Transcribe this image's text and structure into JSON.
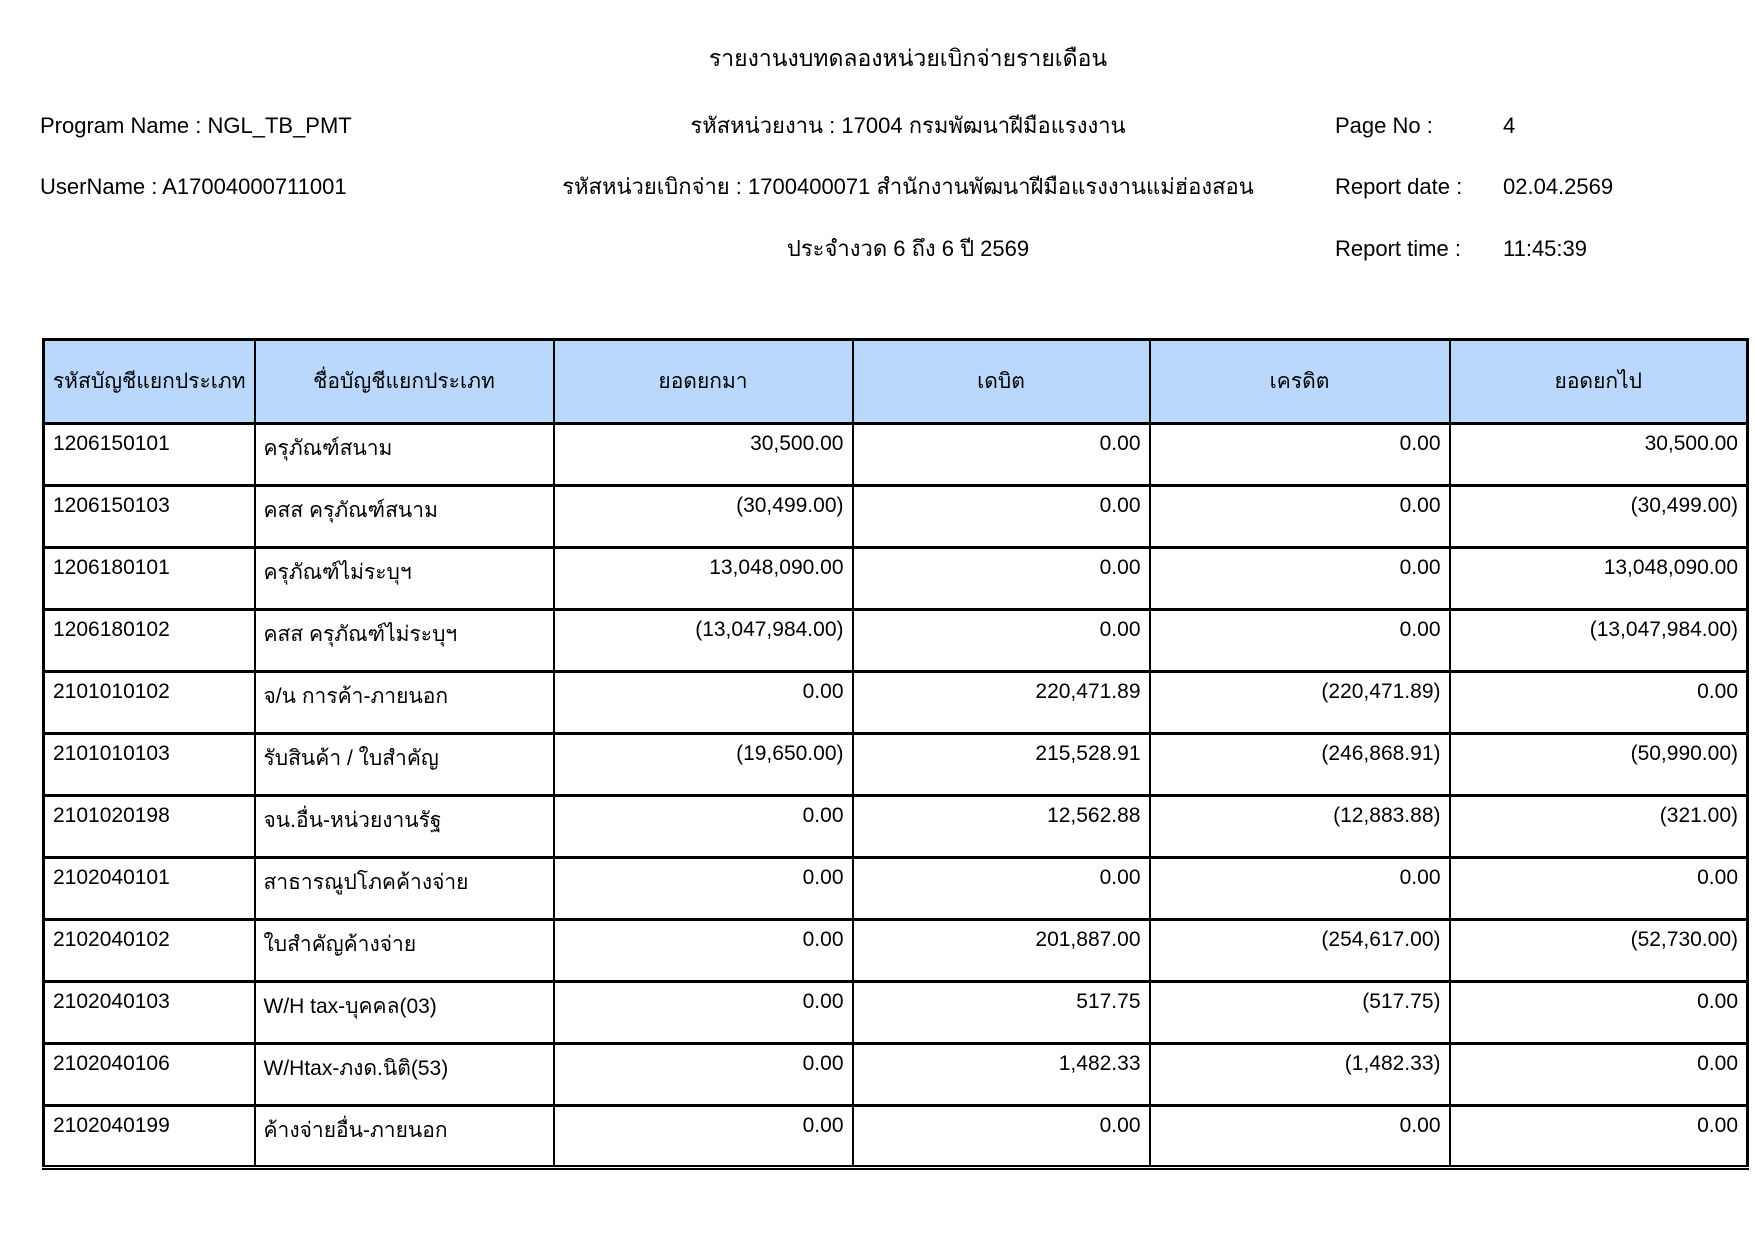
{
  "colors": {
    "table_header_fill": "#B9D8FB",
    "border_color": "#000000",
    "text_color": "#000000"
  },
  "header": {
    "title": "รายงานงบทดลองหน่วยเบิกจ่ายรายเดือน",
    "program_name_line": "Program Name : NGL_TB_PMT",
    "user_name_line": "UserName : A17004000711001",
    "agency_line": "รหัสหน่วยงาน : 17004 กรมพัฒนาฝีมือแรงงาน",
    "disbursement_unit_line": "รหัสหน่วยเบิกจ่าย : 1700400071 สำนักงานพัฒนาฝีมือแรงงานแม่ฮ่องสอน",
    "period_line": "ประจำงวด 6 ถึง 6 ปี 2569",
    "page_no": {
      "label": "Page No :",
      "value": "4"
    },
    "report_date": {
      "label": "Report date :",
      "value": "02.04.2569"
    },
    "report_time": {
      "label": "Report time :",
      "value": "11:45:39"
    }
  },
  "table": {
    "columns": [
      "รหัสบัญชีแยกประเภท",
      "ชื่อบัญชีแยกประเภท",
      "ยอดยกมา",
      "เดบิต",
      "เครดิต",
      "ยอดยกไป"
    ],
    "rows": [
      {
        "code": "1206150101",
        "name": "ครุภัณฑ์สนาม",
        "begin": "30,500.00",
        "debit": "0.00",
        "credit": "0.00",
        "end": "30,500.00"
      },
      {
        "code": "1206150103",
        "name": "คสส ครุภัณฑ์สนาม",
        "begin": "(30,499.00)",
        "debit": "0.00",
        "credit": "0.00",
        "end": "(30,499.00)"
      },
      {
        "code": "1206180101",
        "name": "ครุภัณฑ์ไม่ระบุฯ",
        "begin": "13,048,090.00",
        "debit": "0.00",
        "credit": "0.00",
        "end": "13,048,090.00"
      },
      {
        "code": "1206180102",
        "name": "คสส ครุภัณฑ์ไม่ระบุฯ",
        "begin": "(13,047,984.00)",
        "debit": "0.00",
        "credit": "0.00",
        "end": "(13,047,984.00)"
      },
      {
        "code": "2101010102",
        "name": "จ/น การค้า-ภายนอก",
        "begin": "0.00",
        "debit": "220,471.89",
        "credit": "(220,471.89)",
        "end": "0.00"
      },
      {
        "code": "2101010103",
        "name": "รับสินค้า / ใบสำคัญ",
        "begin": "(19,650.00)",
        "debit": "215,528.91",
        "credit": "(246,868.91)",
        "end": "(50,990.00)"
      },
      {
        "code": "2101020198",
        "name": "จน.อื่น-หน่วยงานรัฐ",
        "begin": "0.00",
        "debit": "12,562.88",
        "credit": "(12,883.88)",
        "end": "(321.00)"
      },
      {
        "code": "2102040101",
        "name": "สาธารณูปโภคค้างจ่าย",
        "begin": "0.00",
        "debit": "0.00",
        "credit": "0.00",
        "end": "0.00"
      },
      {
        "code": "2102040102",
        "name": "ใบสำคัญค้างจ่าย",
        "begin": "0.00",
        "debit": "201,887.00",
        "credit": "(254,617.00)",
        "end": "(52,730.00)"
      },
      {
        "code": "2102040103",
        "name": "W/H tax-บุคคล(03)",
        "begin": "0.00",
        "debit": "517.75",
        "credit": "(517.75)",
        "end": "0.00"
      },
      {
        "code": "2102040106",
        "name": "W/Htax-ภงด.นิติ(53)",
        "begin": "0.00",
        "debit": "1,482.33",
        "credit": "(1,482.33)",
        "end": "0.00"
      },
      {
        "code": "2102040199",
        "name": "ค้างจ่ายอื่น-ภายนอก",
        "begin": "0.00",
        "debit": "0.00",
        "credit": "0.00",
        "end": "0.00"
      }
    ]
  }
}
